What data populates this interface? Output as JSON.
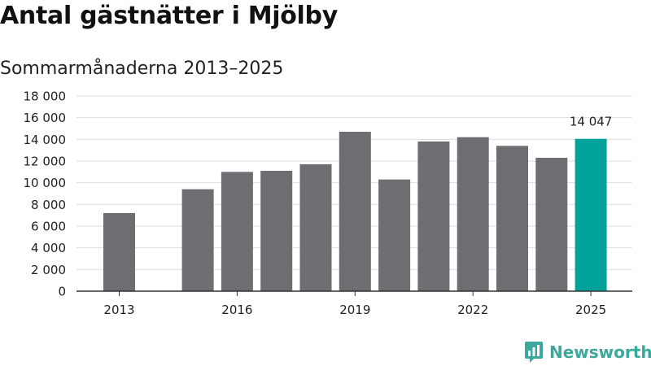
{
  "title": "Antal gästnätter i Mjölby",
  "subtitle": "Sommarmånaderna 2013–2025",
  "brand": {
    "name": "Newsworthy",
    "icon": "newsworthy-logo-icon",
    "color": "#3aa89c"
  },
  "colors": {
    "bar": "#6e6d72",
    "highlight": "#00a29a",
    "grid": "#dddddd",
    "axis": "#333333"
  },
  "chart_data": {
    "type": "bar",
    "x": [
      2013,
      2014,
      2015,
      2016,
      2017,
      2018,
      2019,
      2020,
      2021,
      2022,
      2023,
      2024,
      2025
    ],
    "values": [
      7200,
      null,
      9400,
      11000,
      11100,
      11700,
      14700,
      10300,
      13800,
      14200,
      13400,
      12300,
      14047
    ],
    "highlight_index": 12,
    "highlight_label": "14 047",
    "xticks": [
      2013,
      2016,
      2019,
      2022,
      2025
    ],
    "xtick_labels": [
      "2013",
      "2016",
      "2019",
      "2022",
      "2025"
    ],
    "yticks": [
      0,
      2000,
      4000,
      6000,
      8000,
      10000,
      12000,
      14000,
      16000,
      18000
    ],
    "ytick_labels": [
      "0",
      "2 000",
      "4 000",
      "6 000",
      "8 000",
      "10 000",
      "12 000",
      "14 000",
      "16 000",
      "18 000"
    ],
    "ylim": [
      0,
      18000
    ],
    "grid": true,
    "legend": "none"
  }
}
